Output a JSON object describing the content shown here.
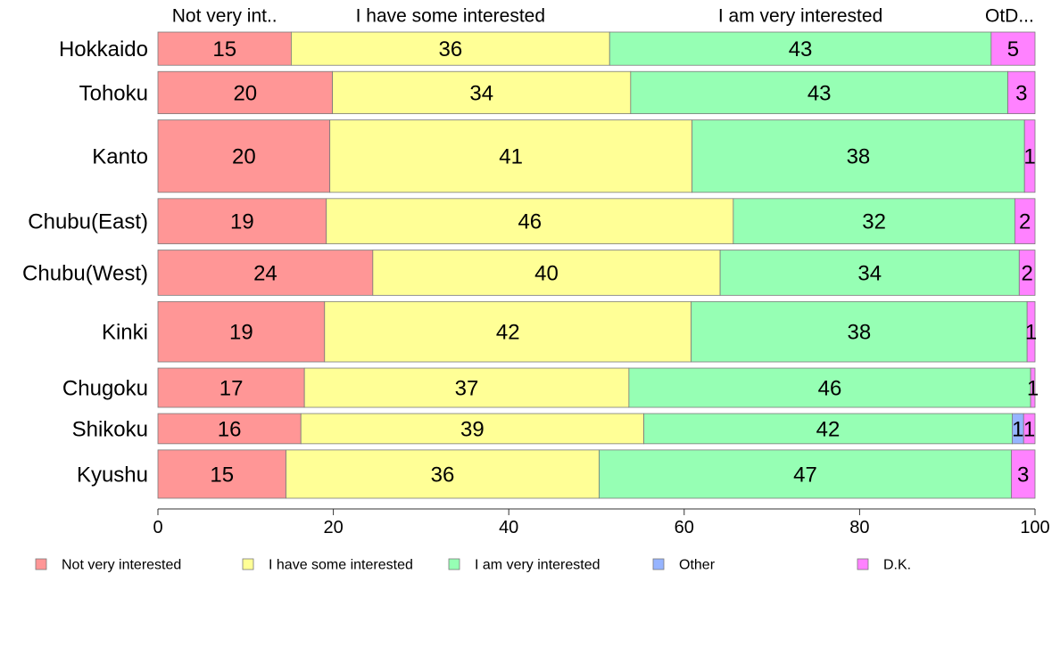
{
  "chart_data": {
    "type": "bar",
    "orientation": "horizontal",
    "stacked": true,
    "title": "",
    "xlabel": "",
    "ylabel": "",
    "xlim": [
      0,
      100
    ],
    "x_ticks": [
      "0",
      "20",
      "40",
      "60",
      "80",
      "100"
    ],
    "grid": false,
    "legend_position": "bottom",
    "top_header_labels": [
      "Not very int..",
      "I have some interested",
      "I am very interested",
      "OtD..."
    ],
    "categories": [
      "Hokkaido",
      "Tohoku",
      "Kanto",
      "Chubu(East)",
      "Chubu(West)",
      "Kinki",
      "Chugoku",
      "Shikoku",
      "Kyushu"
    ],
    "row_weights": [
      11,
      14,
      24,
      15,
      15,
      20,
      13,
      10,
      16
    ],
    "series": [
      {
        "name": "Not very interested",
        "color": "#FF9696",
        "values": [
          15.2,
          19.9,
          19.6,
          19.2,
          24.5,
          19.0,
          16.7,
          16.3,
          14.6
        ],
        "labels": [
          "15",
          "20",
          "20",
          "19",
          "24",
          "19",
          "17",
          "16",
          "15"
        ]
      },
      {
        "name": "I have some interested",
        "color": "#FFFF96",
        "values": [
          36.3,
          34.0,
          41.3,
          46.4,
          39.6,
          41.8,
          37.0,
          39.1,
          35.7
        ],
        "labels": [
          "36",
          "34",
          "41",
          "46",
          "40",
          "42",
          "37",
          "39",
          "36"
        ]
      },
      {
        "name": "I am very interested",
        "color": "#96FFB4",
        "values": [
          43.5,
          43.0,
          37.9,
          32.1,
          34.1,
          38.3,
          45.8,
          42.0,
          47.0
        ],
        "labels": [
          "43",
          "43",
          "38",
          "32",
          "34",
          "38",
          "46",
          "42",
          "47"
        ]
      },
      {
        "name": "Other",
        "color": "#96B4FF",
        "values": [
          0,
          0,
          0,
          0,
          0,
          0,
          0,
          1.3,
          0
        ],
        "labels": [
          "",
          "",
          "",
          "",
          "",
          "",
          "",
          "1",
          ""
        ]
      },
      {
        "name": "D.K.",
        "color": "#FF82FF",
        "values": [
          5.0,
          3.1,
          1.2,
          2.3,
          1.8,
          0.9,
          0.5,
          1.3,
          2.7
        ],
        "labels": [
          "5",
          "3",
          "1",
          "2",
          "2",
          "1",
          "1",
          "1",
          "3"
        ]
      }
    ]
  }
}
